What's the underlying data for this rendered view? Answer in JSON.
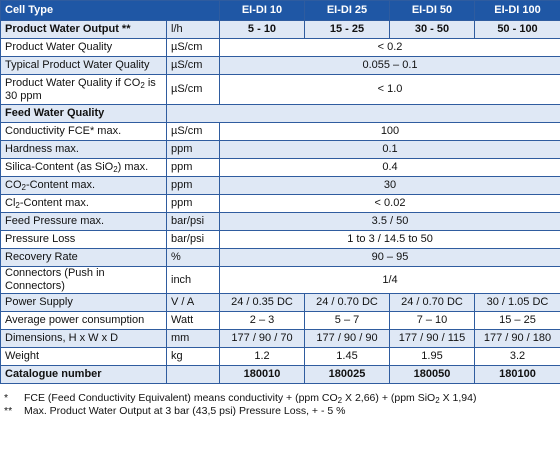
{
  "header": {
    "cell_type": "Cell Type",
    "models": [
      "EI-DI 10",
      "EI-DI 25",
      "EI-DI 50",
      "EI-DI 100"
    ]
  },
  "rows": [
    {
      "label": "Product Water Output **",
      "unit": "l/h",
      "values": [
        "5 - 10",
        "15 - 25",
        "30 - 50",
        "50 - 100"
      ],
      "bold": true
    },
    {
      "label": "Product Water Quality",
      "unit": "µS/cm",
      "value": "< 0.2"
    },
    {
      "label": "Typical Product Water Quality",
      "unit": "µS/cm",
      "value": "0.055 – 0.1"
    },
    {
      "label_pre": "Product Water Quality if CO",
      "label_sub": "2",
      "label_post": " is 30 ppm",
      "unit": "µS/cm",
      "value": "< 1.0",
      "tall": true
    },
    {
      "label": "Feed Water Quality",
      "section": true
    },
    {
      "label": "Conductivity FCE* max.",
      "unit": "µS/cm",
      "value": "100"
    },
    {
      "label": "Hardness max.",
      "unit": "ppm",
      "value": "0.1"
    },
    {
      "label_pre": "Silica-Content (as SiO",
      "label_sub": "2",
      "label_post": ") max.",
      "unit": "ppm",
      "value": "0.4"
    },
    {
      "label_pre": "CO",
      "label_sub": "2",
      "label_post": "-Content max.",
      "unit": "ppm",
      "value": "30"
    },
    {
      "label_pre": "Cl",
      "label_sub": "2",
      "label_post": "-Content max.",
      "unit": "ppm",
      "value": "< 0.02"
    },
    {
      "label": "Feed Pressure max.",
      "unit": "bar/psi",
      "value": "3.5 / 50"
    },
    {
      "label": "Pressure Loss",
      "unit": "bar/psi",
      "value": "1 to 3  / 14.5 to 50"
    },
    {
      "label": "Recovery Rate",
      "unit": "%",
      "value": "90 – 95"
    },
    {
      "label": "Connectors (Push in Connectors)",
      "unit": "inch",
      "value": "1/4"
    },
    {
      "label": "Power Supply",
      "unit": "V / A",
      "values": [
        "24 / 0.35 DC",
        "24 / 0.70 DC",
        "24 / 0.70 DC",
        "30 / 1.05 DC"
      ]
    },
    {
      "label": "Average power consumption",
      "unit": "Watt",
      "values": [
        "2 – 3",
        "5 – 7",
        "7 – 10",
        "15 – 25"
      ]
    },
    {
      "label": "Dimensions, H x W x D",
      "unit": "mm",
      "values": [
        "177 / 90 / 70",
        "177 / 90 / 90",
        "177 / 90 / 115",
        "177 / 90 / 180"
      ]
    },
    {
      "label": "Weight",
      "unit": "kg",
      "values": [
        "1.2",
        "1.45",
        "1.95",
        "3.2"
      ]
    },
    {
      "label": "Catalogue number",
      "unit": "",
      "values": [
        "180010",
        "180025",
        "180050",
        "180100"
      ],
      "bold": true
    }
  ],
  "footnotes": {
    "fce": {
      "mark": "*",
      "p1": "FCE (Feed Conductivity Equivalent) means conductivity + (ppm CO",
      "sub1": "2",
      "p2": " X 2,66) + (ppm SiO",
      "sub2": "2",
      "p3": " X 1,94)"
    },
    "output": {
      "mark": "**",
      "text": "Max. Product Water Output at 3 bar (43,5 psi) Pressure Loss, + - 5 %"
    }
  }
}
